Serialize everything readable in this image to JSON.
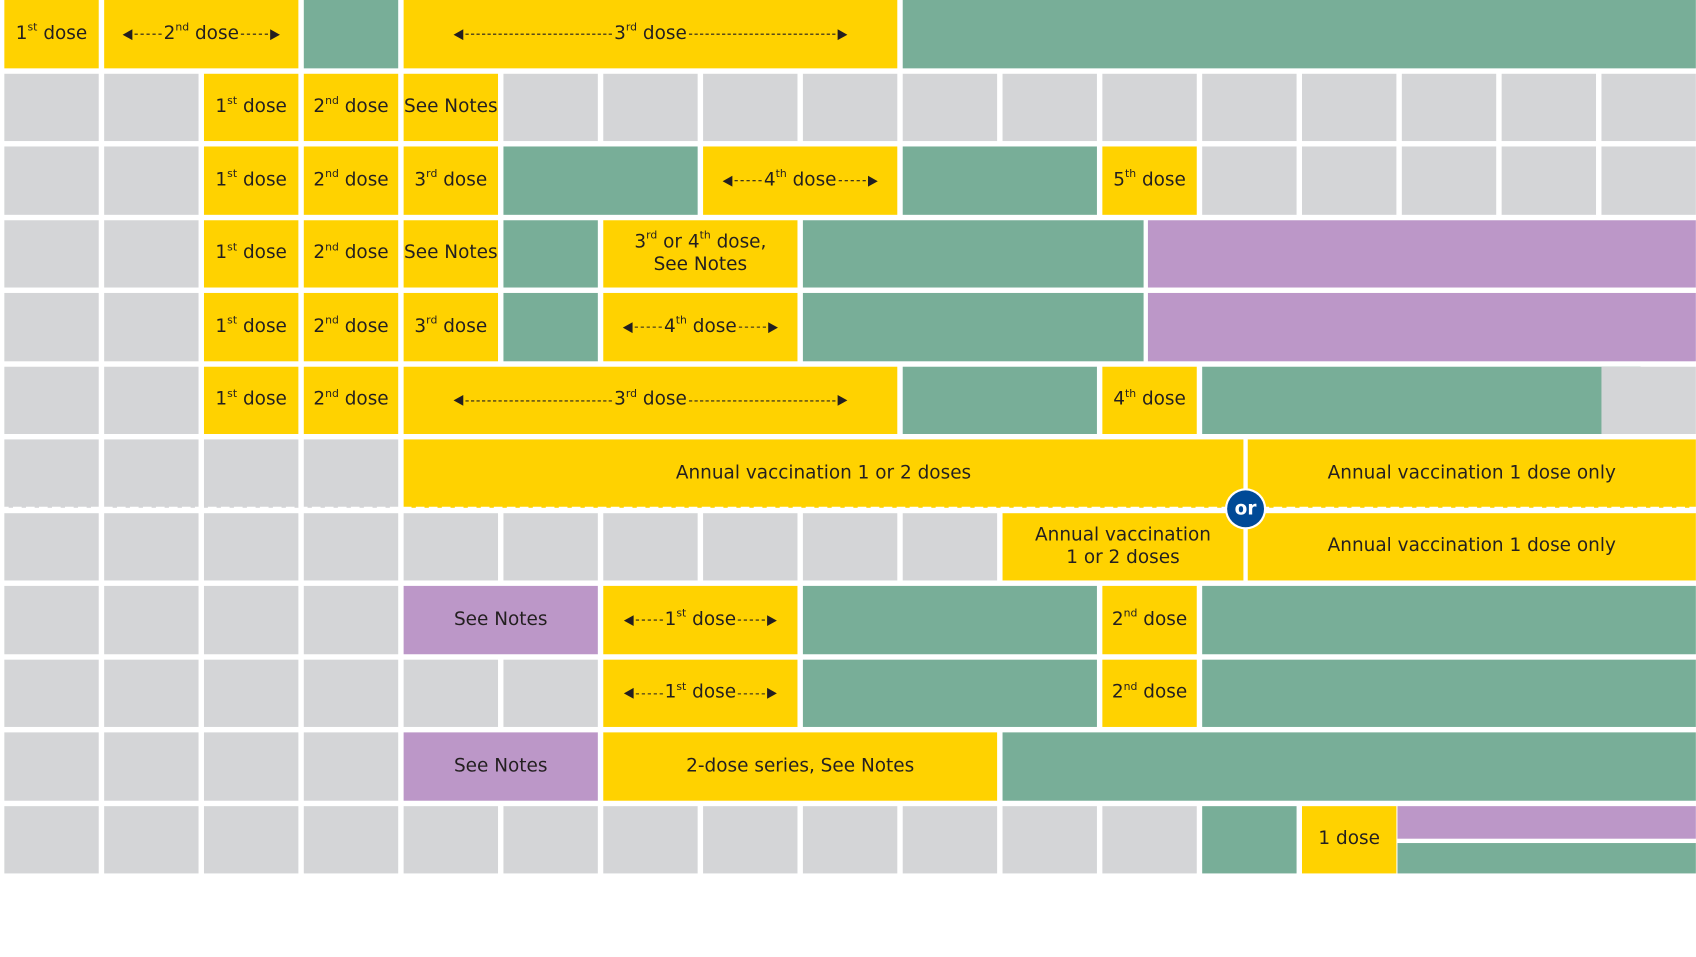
{
  "labels": {
    "first_dose": "1st dose",
    "second_dose": "2nd dose",
    "third_dose": "3rd dose",
    "fourth_dose": "4th dose",
    "fifth_dose": "5th dose",
    "one_dose": "1 dose",
    "see_notes": "See Notes",
    "third_or_fourth_line1": "3rd or 4th dose,",
    "third_or_fourth_line2": "See Notes",
    "annual_1_or_2": "Annual vaccination 1 or 2 doses",
    "annual_1_or_2_line1": "Annual vaccination",
    "annual_1_or_2_line2": "1 or 2 doses",
    "annual_1_only": "Annual vaccination 1 dose only",
    "two_dose_series": "2-dose series, See Notes",
    "or": "or"
  },
  "colors": {
    "recommended": "#ffd200",
    "catch_up": "#78ae98",
    "high_risk": "#bc97c8",
    "not_routine": "#d4d5d7",
    "or_badge": "#004a97"
  }
}
